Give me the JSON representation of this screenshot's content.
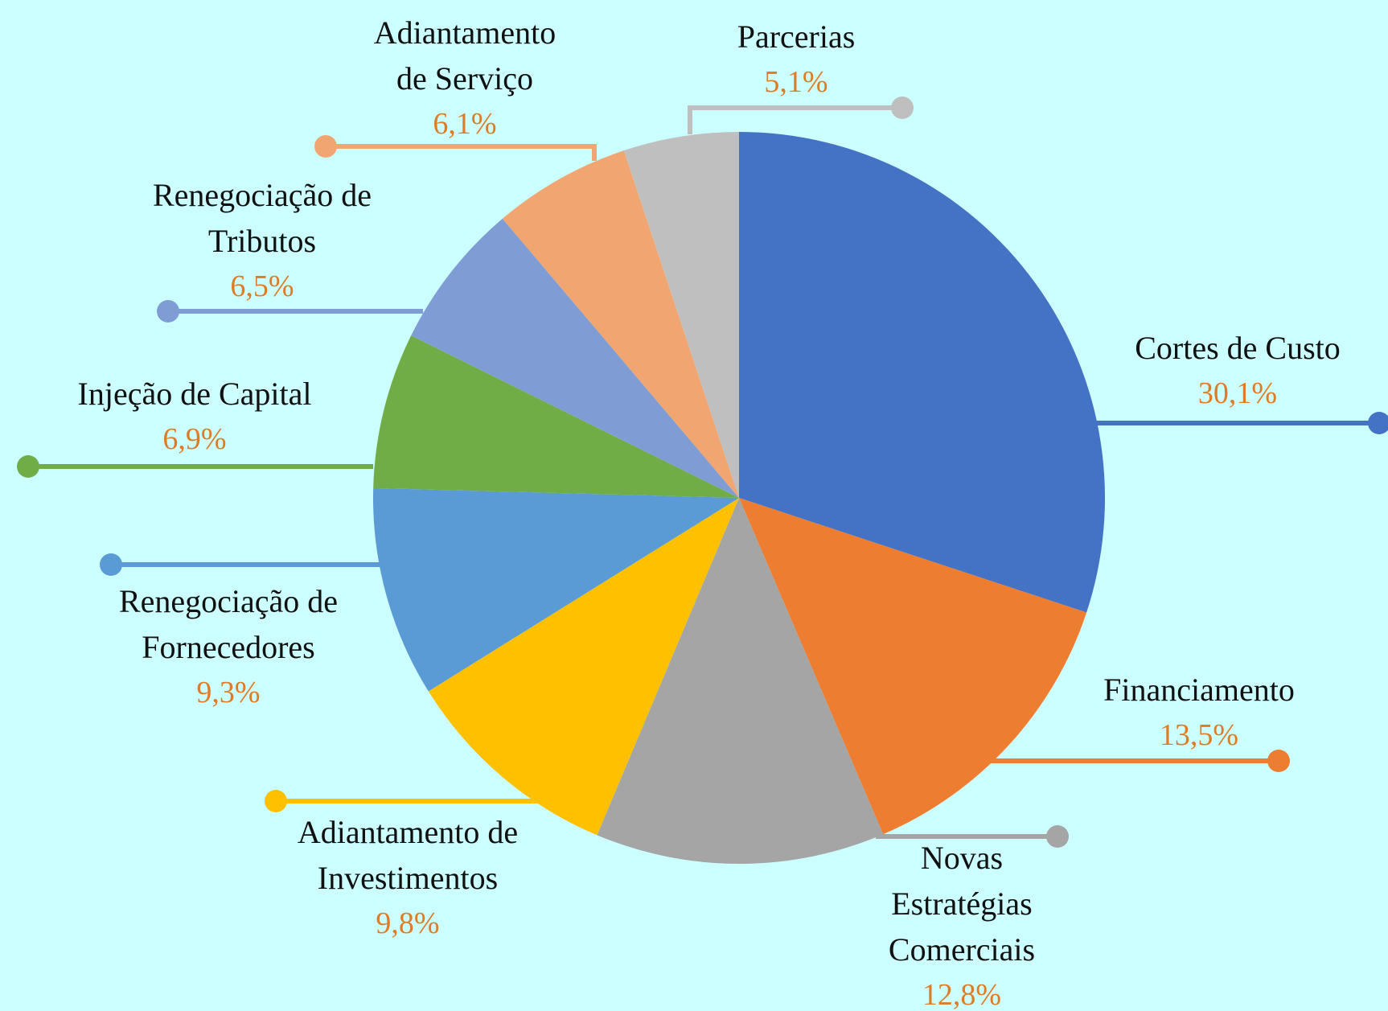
{
  "chart_data": {
    "type": "pie",
    "categories": [
      "Cortes de Custo",
      "Financiamento",
      "Novas Estratégias Comerciais",
      "Adiantamento de Investimentos",
      "Renegociação de Fornecedores",
      "Injeção de Capital",
      "Renegociação de Tributos",
      "Adiantamento de Serviço",
      "Parcerias"
    ],
    "values": [
      30.1,
      13.5,
      12.8,
      9.8,
      9.3,
      6.9,
      6.5,
      6.1,
      5.1
    ],
    "value_labels": [
      "30,1%",
      "13,5%",
      "12,8%",
      "9,8%",
      "9,3%",
      "6,9%",
      "6,5%",
      "6,1%",
      "5,1%"
    ],
    "colors": [
      "#4472c4",
      "#ed7d31",
      "#a5a5a5",
      "#ffc000",
      "#5b9bd5",
      "#70ad47",
      "#7f9dd4",
      "#f1a671",
      "#bfbfbf"
    ],
    "label_color": "#e07b25",
    "background": "#ccffff"
  }
}
